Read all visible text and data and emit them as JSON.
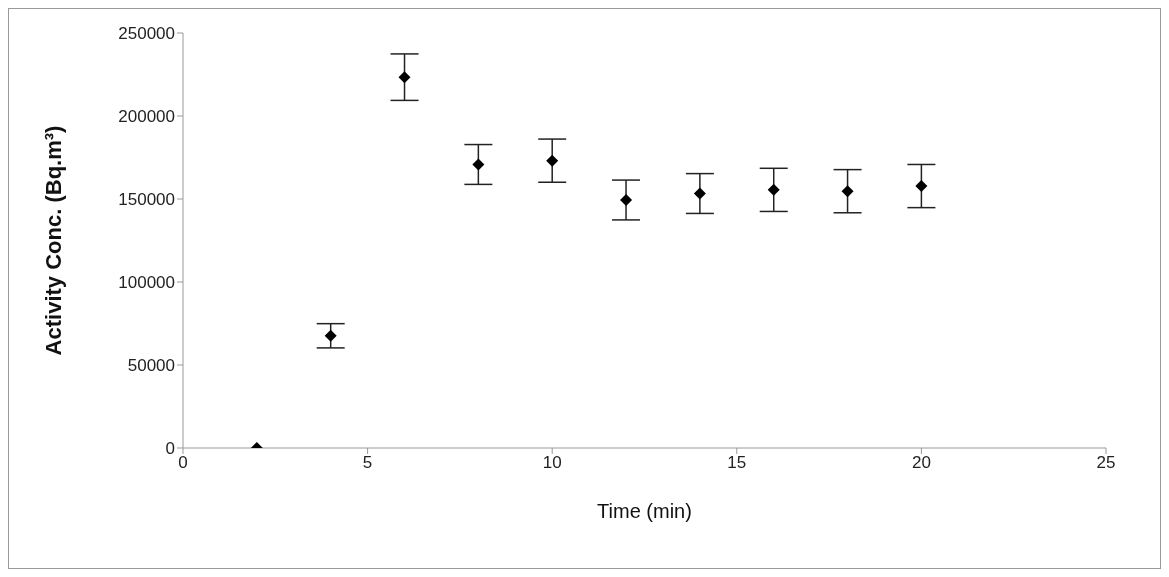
{
  "chart_data": {
    "type": "scatter",
    "xlabel": "Time (min)",
    "ylabel": "Activity Conc. (Bq.m³)",
    "x": [
      2,
      4,
      6,
      8,
      10,
      12,
      14,
      16,
      18,
      20
    ],
    "values": [
      0,
      67600,
      223400,
      170800,
      173100,
      149400,
      153300,
      155500,
      154700,
      157800
    ],
    "errors": [
      null,
      7300,
      14000,
      12000,
      13000,
      12000,
      12000,
      13000,
      13000,
      13000
    ],
    "color": "#000000",
    "marker": "diamond",
    "grid": false,
    "legend": false,
    "xlim": [
      0,
      25
    ],
    "xticks": [
      0,
      5,
      10,
      15,
      20,
      25
    ],
    "ylim": [
      0,
      250000
    ],
    "yticks": [
      0,
      50000,
      100000,
      150000,
      200000,
      250000
    ]
  }
}
